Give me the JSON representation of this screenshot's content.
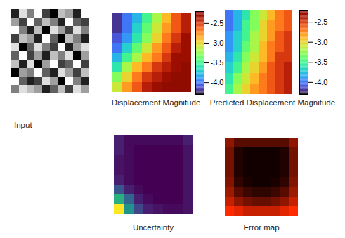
{
  "chart_data": [
    {
      "type": "image",
      "title": "Input",
      "cells": [
        [
          0.2,
          0.8,
          0.5,
          0.9,
          0.3,
          0.1,
          0.7,
          0.6,
          0.2,
          0.9
        ],
        [
          0.6,
          0.3,
          0.9,
          0.4,
          0.7,
          0.5,
          0.2,
          0.9,
          0.4,
          0.3
        ],
        [
          0.9,
          0.5,
          0.2,
          0.7,
          0.1,
          0.8,
          0.6,
          0.3,
          0.8,
          0.5
        ],
        [
          0.3,
          0.7,
          0.6,
          0.2,
          0.9,
          0.4,
          0.1,
          0.7,
          0.5,
          0.2
        ],
        [
          0.8,
          0.1,
          0.4,
          0.8,
          0.5,
          0.3,
          0.9,
          0.2,
          0.6,
          0.8
        ],
        [
          0.4,
          0.9,
          0.3,
          0.6,
          0.2,
          0.7,
          0.5,
          0.8,
          0.1,
          0.6
        ],
        [
          0.7,
          0.2,
          0.8,
          0.1,
          0.6,
          0.9,
          0.3,
          0.4,
          0.9,
          0.3
        ],
        [
          0.1,
          0.6,
          0.5,
          0.9,
          0.4,
          0.2,
          0.8,
          0.6,
          0.3,
          0.7
        ],
        [
          0.9,
          0.4,
          0.2,
          0.3,
          0.8,
          0.6,
          0.1,
          0.9,
          0.5,
          0.2
        ],
        [
          0.5,
          0.8,
          0.7,
          0.6,
          0.2,
          0.4,
          0.7,
          0.3,
          0.8,
          0.6
        ]
      ]
    },
    {
      "type": "heatmap",
      "title": "Displacement Magnitude",
      "cells": [
        [
          -4.2,
          -4.0,
          -3.8,
          -3.5,
          -3.2,
          -2.9,
          -2.6,
          -2.4
        ],
        [
          -4.2,
          -4.0,
          -3.7,
          -3.4,
          -3.1,
          -2.8,
          -2.6,
          -2.4
        ],
        [
          -4.1,
          -3.9,
          -3.6,
          -3.3,
          -3.0,
          -2.7,
          -2.5,
          -2.3
        ],
        [
          -4.0,
          -3.7,
          -3.4,
          -3.1,
          -2.8,
          -2.6,
          -2.4,
          -2.3
        ],
        [
          -3.8,
          -3.5,
          -3.2,
          -2.9,
          -2.7,
          -2.5,
          -2.3,
          -2.3
        ],
        [
          -3.6,
          -3.2,
          -2.9,
          -2.7,
          -2.5,
          -2.4,
          -2.3,
          -2.2
        ],
        [
          -3.3,
          -3.0,
          -2.7,
          -2.5,
          -2.4,
          -2.3,
          -2.2,
          -2.2
        ],
        [
          -3.1,
          -2.8,
          -2.6,
          -2.4,
          -2.3,
          -2.2,
          -2.2,
          -2.2
        ]
      ],
      "colorbar": {
        "range": [
          -4.3,
          -2.2
        ],
        "ticks": [
          -2.5,
          {
            "value": -3,
            "label": "-3.0"
          },
          -3.5,
          {
            "value": -4,
            "label": "-4.0"
          }
        ]
      }
    },
    {
      "type": "heatmap",
      "title": "Predicted Displacement Magnitude",
      "cells": [
        [
          -4.0,
          -3.8,
          -3.6,
          -3.3,
          -3.1,
          -2.9,
          -2.7,
          -2.6
        ],
        [
          -4.0,
          -3.8,
          -3.5,
          -3.3,
          -3.0,
          -2.8,
          -2.7,
          -2.6
        ],
        [
          -3.9,
          -3.7,
          -3.5,
          -3.2,
          -3.0,
          -2.8,
          -2.6,
          -2.5
        ],
        [
          -3.9,
          -3.7,
          -3.4,
          -3.2,
          -2.9,
          -2.7,
          -2.6,
          -2.5
        ],
        [
          -3.8,
          -3.6,
          -3.3,
          -3.1,
          -2.9,
          -2.7,
          -2.5,
          -2.5
        ],
        [
          -3.7,
          -3.5,
          -3.2,
          -3.0,
          -2.8,
          -2.6,
          -2.5,
          -2.4
        ],
        [
          -3.6,
          -3.3,
          -3.1,
          -2.9,
          -2.7,
          -2.6,
          -2.5,
          -2.4
        ],
        [
          -3.5,
          -3.2,
          -3.0,
          -2.8,
          -2.7,
          -2.6,
          -2.5,
          -2.4
        ]
      ],
      "colorbar": {
        "range": [
          -4.3,
          -2.2
        ],
        "ticks": [
          -2.5,
          {
            "value": -3,
            "label": "-3.0"
          },
          -3.5,
          {
            "value": -4,
            "label": "-4.0"
          }
        ]
      }
    },
    {
      "type": "heatmap",
      "title": "Uncertainty",
      "cells": [
        [
          0.15,
          0.1,
          0.1,
          0.1,
          0.1,
          0.1,
          0.1,
          0.15
        ],
        [
          0.15,
          0.1,
          0.08,
          0.08,
          0.08,
          0.08,
          0.08,
          0.12
        ],
        [
          0.12,
          0.1,
          0.08,
          0.08,
          0.08,
          0.08,
          0.08,
          0.12
        ],
        [
          0.12,
          0.1,
          0.08,
          0.08,
          0.08,
          0.08,
          0.08,
          0.12
        ],
        [
          0.15,
          0.1,
          0.08,
          0.08,
          0.08,
          0.08,
          0.08,
          0.12
        ],
        [
          0.3,
          0.15,
          0.1,
          0.08,
          0.08,
          0.08,
          0.08,
          0.12
        ],
        [
          0.6,
          0.35,
          0.15,
          0.1,
          0.08,
          0.08,
          0.08,
          0.12
        ],
        [
          0.9,
          0.5,
          0.25,
          0.15,
          0.12,
          0.1,
          0.1,
          0.12
        ]
      ]
    },
    {
      "type": "heatmap",
      "title": "Error map",
      "cells": [
        [
          0.5,
          0.3,
          0.3,
          0.3,
          0.3,
          0.3,
          0.3,
          0.5
        ],
        [
          0.4,
          0.1,
          0.05,
          0.05,
          0.05,
          0.05,
          0.1,
          0.4
        ],
        [
          0.4,
          0.1,
          0.05,
          0.05,
          0.05,
          0.05,
          0.1,
          0.4
        ],
        [
          0.4,
          0.1,
          0.05,
          0.05,
          0.05,
          0.05,
          0.1,
          0.4
        ],
        [
          0.45,
          0.15,
          0.08,
          0.05,
          0.05,
          0.08,
          0.15,
          0.45
        ],
        [
          0.55,
          0.3,
          0.2,
          0.15,
          0.15,
          0.2,
          0.3,
          0.55
        ],
        [
          0.7,
          0.5,
          0.4,
          0.35,
          0.35,
          0.4,
          0.5,
          0.7
        ],
        [
          0.9,
          0.8,
          0.7,
          0.7,
          0.7,
          0.7,
          0.8,
          0.9
        ]
      ]
    }
  ]
}
